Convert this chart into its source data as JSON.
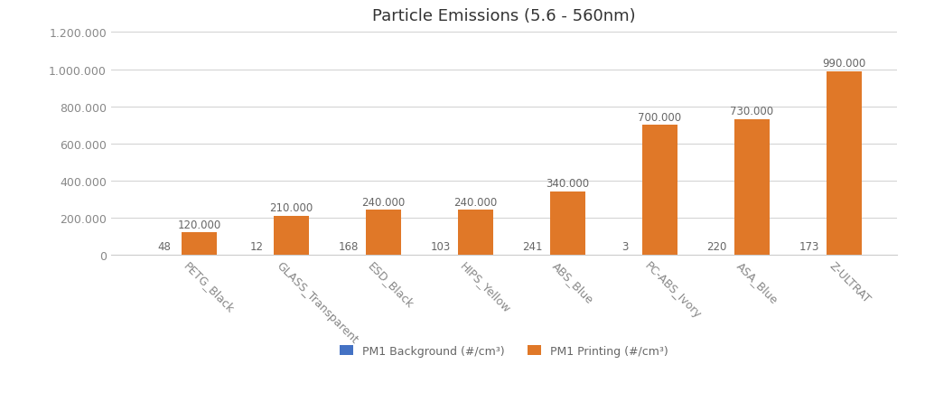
{
  "title": "Particle Emissions (5.6 - 560nm)",
  "categories": [
    "PETG_Black",
    "GLASS_Transparent",
    "ESD_Black",
    "HIPS_Yellow",
    "ABS_Blue",
    "PC-ABS_Ivory",
    "ASA_Blue",
    "Z-ULTRAT"
  ],
  "background_values": [
    48,
    12,
    168,
    103,
    241,
    3,
    220,
    173
  ],
  "printing_values": [
    120000,
    210000,
    240000,
    240000,
    340000,
    700000,
    730000,
    990000
  ],
  "background_labels": [
    "48",
    "12",
    "168",
    "103",
    "241",
    "3",
    "220",
    "173"
  ],
  "printing_labels": [
    "120.000",
    "210.000",
    "240.000",
    "240.000",
    "340.000",
    "700.000",
    "730.000",
    "990.000"
  ],
  "bar_color_background": "#4472C4",
  "bar_color_printing": "#E07828",
  "legend_background": "PM1 Background (#/cm³)",
  "legend_printing": "PM1 Printing (#/cm³)",
  "ylim": [
    0,
    1200000
  ],
  "yticks": [
    0,
    200000,
    400000,
    600000,
    800000,
    1000000,
    1200000
  ],
  "ytick_labels": [
    "0",
    "200.000",
    "400.000",
    "600.000",
    "800.000",
    "1.000.000",
    "1.200.000"
  ],
  "background_color": "#FFFFFF",
  "grid_color": "#D0D0D0",
  "bar_width": 0.38,
  "title_fontsize": 13,
  "tick_fontsize": 9,
  "label_fontsize": 8.5
}
